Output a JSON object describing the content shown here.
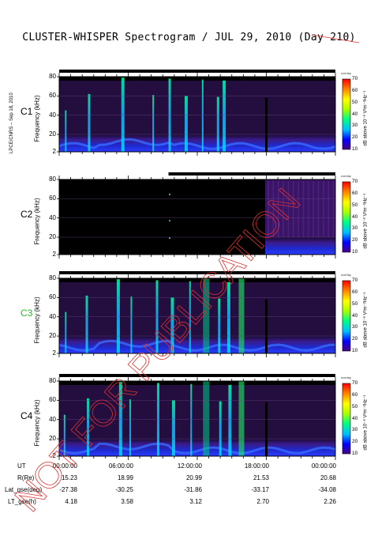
{
  "title": "CLUSTER-WHISPER Spectrogram / JUL 29, 2010 (Day 210)",
  "credit": "LPCE/CNRS – Sep 18, 2010",
  "watermark": "NOT FOR PUBLICATION",
  "colors": {
    "accent_c3": "#22bb22",
    "watermark": "#e03030",
    "background_plot": "#000000"
  },
  "panels": [
    {
      "id": "C1",
      "label": "C1",
      "label_color": "#000000",
      "ylabel": "Frequency (kHz)",
      "yticks": [
        "80",
        "60",
        "40",
        "20",
        "2"
      ],
      "data_coverage_start_hour": 0
    },
    {
      "id": "C2",
      "label": "C2",
      "label_color": "#000000",
      "ylabel": "Frequency (kHz)",
      "yticks": [
        "80",
        "60",
        "40",
        "20",
        "2"
      ],
      "data_coverage_start_hour": 9.5
    },
    {
      "id": "C3",
      "label": "C3",
      "label_color": "#22bb22",
      "ylabel": "Frequency (kHz)",
      "yticks": [
        "80",
        "60",
        "40",
        "20",
        "2"
      ],
      "data_coverage_start_hour": 0
    },
    {
      "id": "C4",
      "label": "C4",
      "label_color": "#000000",
      "ylabel": "Frequency (kHz)",
      "yticks": [
        "80",
        "60",
        "40",
        "20",
        "2"
      ],
      "data_coverage_start_hour": 0
    }
  ],
  "colorbar": {
    "top_label": "overlay",
    "ticks": [
      "70",
      "60",
      "50",
      "40",
      "30",
      "20",
      "10"
    ],
    "unit": "dB above 10⁻⁸ V²m⁻²Hz⁻¹",
    "colors": [
      "#4b0082",
      "#0000ff",
      "#00bfff",
      "#00ff80",
      "#aaff00",
      "#ffff00",
      "#ff8000",
      "#ff0000"
    ]
  },
  "orbit": {
    "row_labels": [
      "UT",
      "R(Re)",
      "Lat_gse(deg)",
      "LT_gse(h)"
    ],
    "columns": [
      {
        "UT": "00:00:00",
        "R": "15.23",
        "Lat": "-27.38",
        "LT": "4.18"
      },
      {
        "UT": "06:00:00",
        "R": "18.99",
        "Lat": "-30.25",
        "LT": "3.58"
      },
      {
        "UT": "12:00:00",
        "R": "20.99",
        "Lat": "-31.86",
        "LT": "3.12"
      },
      {
        "UT": "18:00:00",
        "R": "21.53",
        "Lat": "-33.17",
        "LT": "2.70"
      },
      {
        "UT": "00:00:00",
        "R": "20.68",
        "Lat": "-34.08",
        "LT": "2.26"
      }
    ]
  },
  "chart_data": [
    {
      "type": "heatmap",
      "title": "C1",
      "xlabel": "UT",
      "ylabel": "Frequency (kHz)",
      "xlim": [
        0,
        24
      ],
      "ylim": [
        2,
        80
      ],
      "z_range": [
        10,
        70
      ],
      "z_unit": "dB above 10⁻⁸ V²m⁻²Hz⁻¹",
      "features": {
        "background_band_khz": [
          2,
          20
        ],
        "bursts_hour": [
          0.5,
          2.5,
          5.4,
          8.1,
          9.5,
          10.9,
          12.4,
          13.7,
          14.2,
          17.9
        ]
      }
    },
    {
      "type": "heatmap",
      "title": "C2",
      "xlabel": "UT",
      "ylabel": "Frequency (kHz)",
      "xlim": [
        0,
        24
      ],
      "ylim": [
        2,
        80
      ],
      "z_range": [
        10,
        70
      ],
      "z_unit": "dB above 10⁻⁸ V²m⁻²Hz⁻¹",
      "features": {
        "data_start_hour": 9.5,
        "active_start_hour": 17.9,
        "background_band_khz": [
          2,
          20
        ]
      }
    },
    {
      "type": "heatmap",
      "title": "C3",
      "xlabel": "UT",
      "ylabel": "Frequency (kHz)",
      "xlim": [
        0,
        24
      ],
      "ylim": [
        2,
        80
      ],
      "z_range": [
        10,
        70
      ],
      "z_unit": "dB above 10⁻⁸ V²m⁻²Hz⁻¹",
      "features": {
        "background_band_khz": [
          2,
          20
        ],
        "bursts_hour": [
          0.5,
          2.3,
          5.0,
          6.2,
          8.4,
          9.7,
          11.3,
          13.8,
          14.6,
          17.9
        ]
      }
    },
    {
      "type": "heatmap",
      "title": "C4",
      "xlabel": "UT",
      "ylabel": "Frequency (kHz)",
      "xlim": [
        0,
        24
      ],
      "ylim": [
        2,
        80
      ],
      "z_range": [
        10,
        70
      ],
      "z_unit": "dB above 10⁻⁸ V²m⁻²Hz⁻¹",
      "features": {
        "background_band_khz": [
          2,
          20
        ],
        "bursts_hour": [
          0.4,
          2.4,
          5.2,
          6.1,
          8.5,
          9.8,
          11.4,
          13.9,
          14.7,
          17.9
        ]
      }
    }
  ]
}
